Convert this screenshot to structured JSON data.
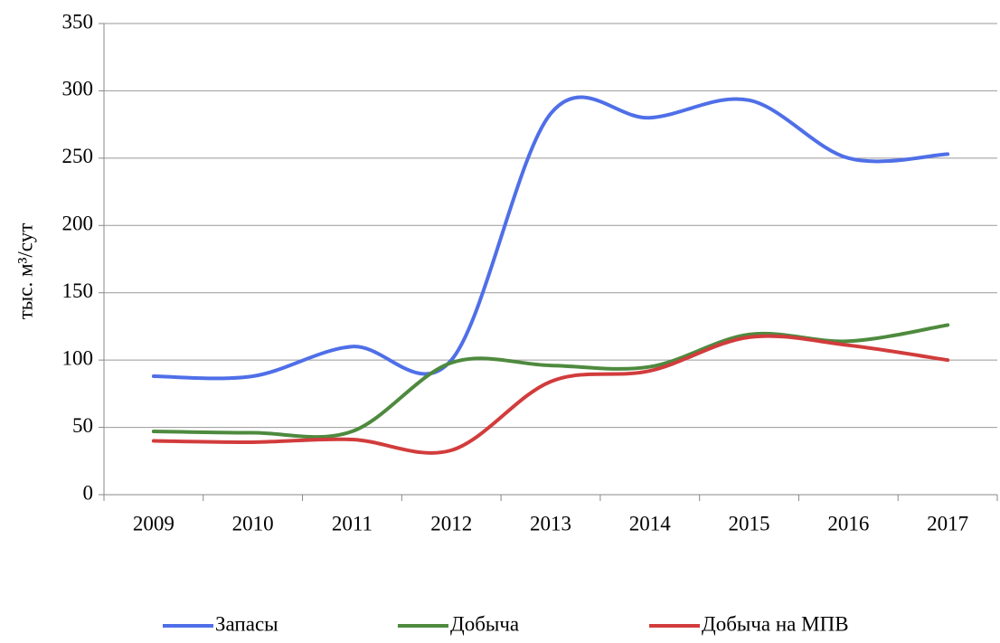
{
  "chart_data": {
    "type": "line",
    "y_label": "тыс. м³/сут",
    "categories": [
      "2009",
      "2010",
      "2011",
      "2012",
      "2013",
      "2014",
      "2015",
      "2016",
      "2017"
    ],
    "series": [
      {
        "name": "Запасы",
        "color": "#4f6fe8",
        "values": [
          88,
          88,
          110,
          100,
          283,
          280,
          293,
          250,
          253
        ]
      },
      {
        "name": "Добыча",
        "color": "#4e8a3e",
        "values": [
          47,
          46,
          47,
          98,
          96,
          95,
          119,
          114,
          126
        ]
      },
      {
        "name": "Добыча на МПВ",
        "color": "#d23c3c",
        "values": [
          40,
          39,
          41,
          33,
          84,
          92,
          117,
          111,
          100
        ]
      }
    ],
    "ylim": [
      0,
      350
    ],
    "yticks": [
      0,
      50,
      100,
      150,
      200,
      250,
      300,
      350
    ],
    "grid": true,
    "legend": "bottom",
    "smooth": true
  }
}
